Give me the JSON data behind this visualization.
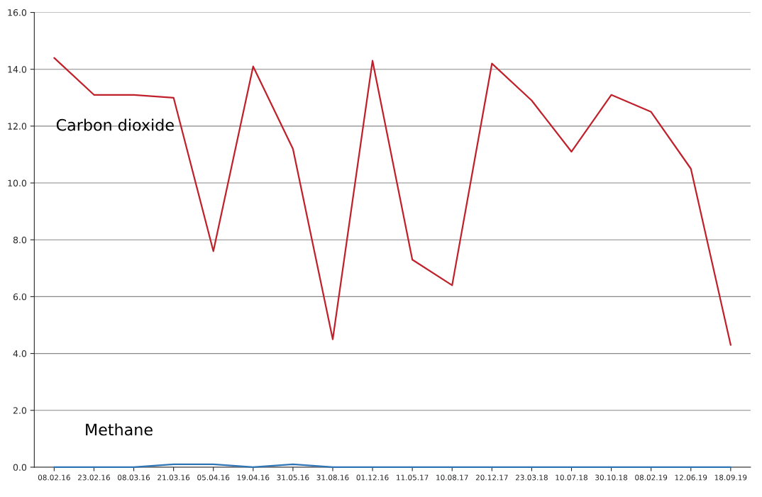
{
  "chart_data": {
    "type": "line",
    "categories": [
      "08.02.16",
      "23.02.16",
      "08.03.16",
      "21.03.16",
      "05.04.16",
      "19.04.16",
      "31.05.16",
      "31.08.16",
      "01.12.16",
      "11.05.17",
      "10.08.17",
      "20.12.17",
      "23.03.18",
      "10.07.18",
      "30.10.18",
      "08.02.19",
      "12.06.19",
      "18.09.19"
    ],
    "series": [
      {
        "name": "Carbon dioxide",
        "color": "#c0202a",
        "values": [
          14.4,
          13.1,
          13.1,
          13.0,
          7.6,
          14.1,
          11.2,
          4.5,
          14.3,
          7.3,
          6.4,
          14.2,
          12.9,
          11.1,
          13.1,
          12.5,
          10.5,
          4.3
        ]
      },
      {
        "name": "Methane",
        "color": "#2e75b6",
        "values": [
          0.0,
          0.0,
          0.0,
          0.1,
          0.1,
          0.0,
          0.1,
          0.0,
          0.0,
          0.0,
          0.0,
          0.0,
          0.0,
          0.0,
          0.0,
          0.0,
          0.0,
          0.0
        ]
      }
    ],
    "ylim": [
      0,
      16
    ],
    "yticks": [
      {
        "value": 0,
        "label": "0.0"
      },
      {
        "value": 2,
        "label": "2.0"
      },
      {
        "value": 4,
        "label": "4.0"
      },
      {
        "value": 6,
        "label": "6.0"
      },
      {
        "value": 8,
        "label": "8.0"
      },
      {
        "value": 10,
        "label": "10.0"
      },
      {
        "value": 12,
        "label": "12.0"
      },
      {
        "value": 14,
        "label": "14.0"
      },
      {
        "value": 16,
        "label": "16.0"
      }
    ],
    "grid": "y",
    "legend": false,
    "marker": "none",
    "line_style": "solid"
  }
}
